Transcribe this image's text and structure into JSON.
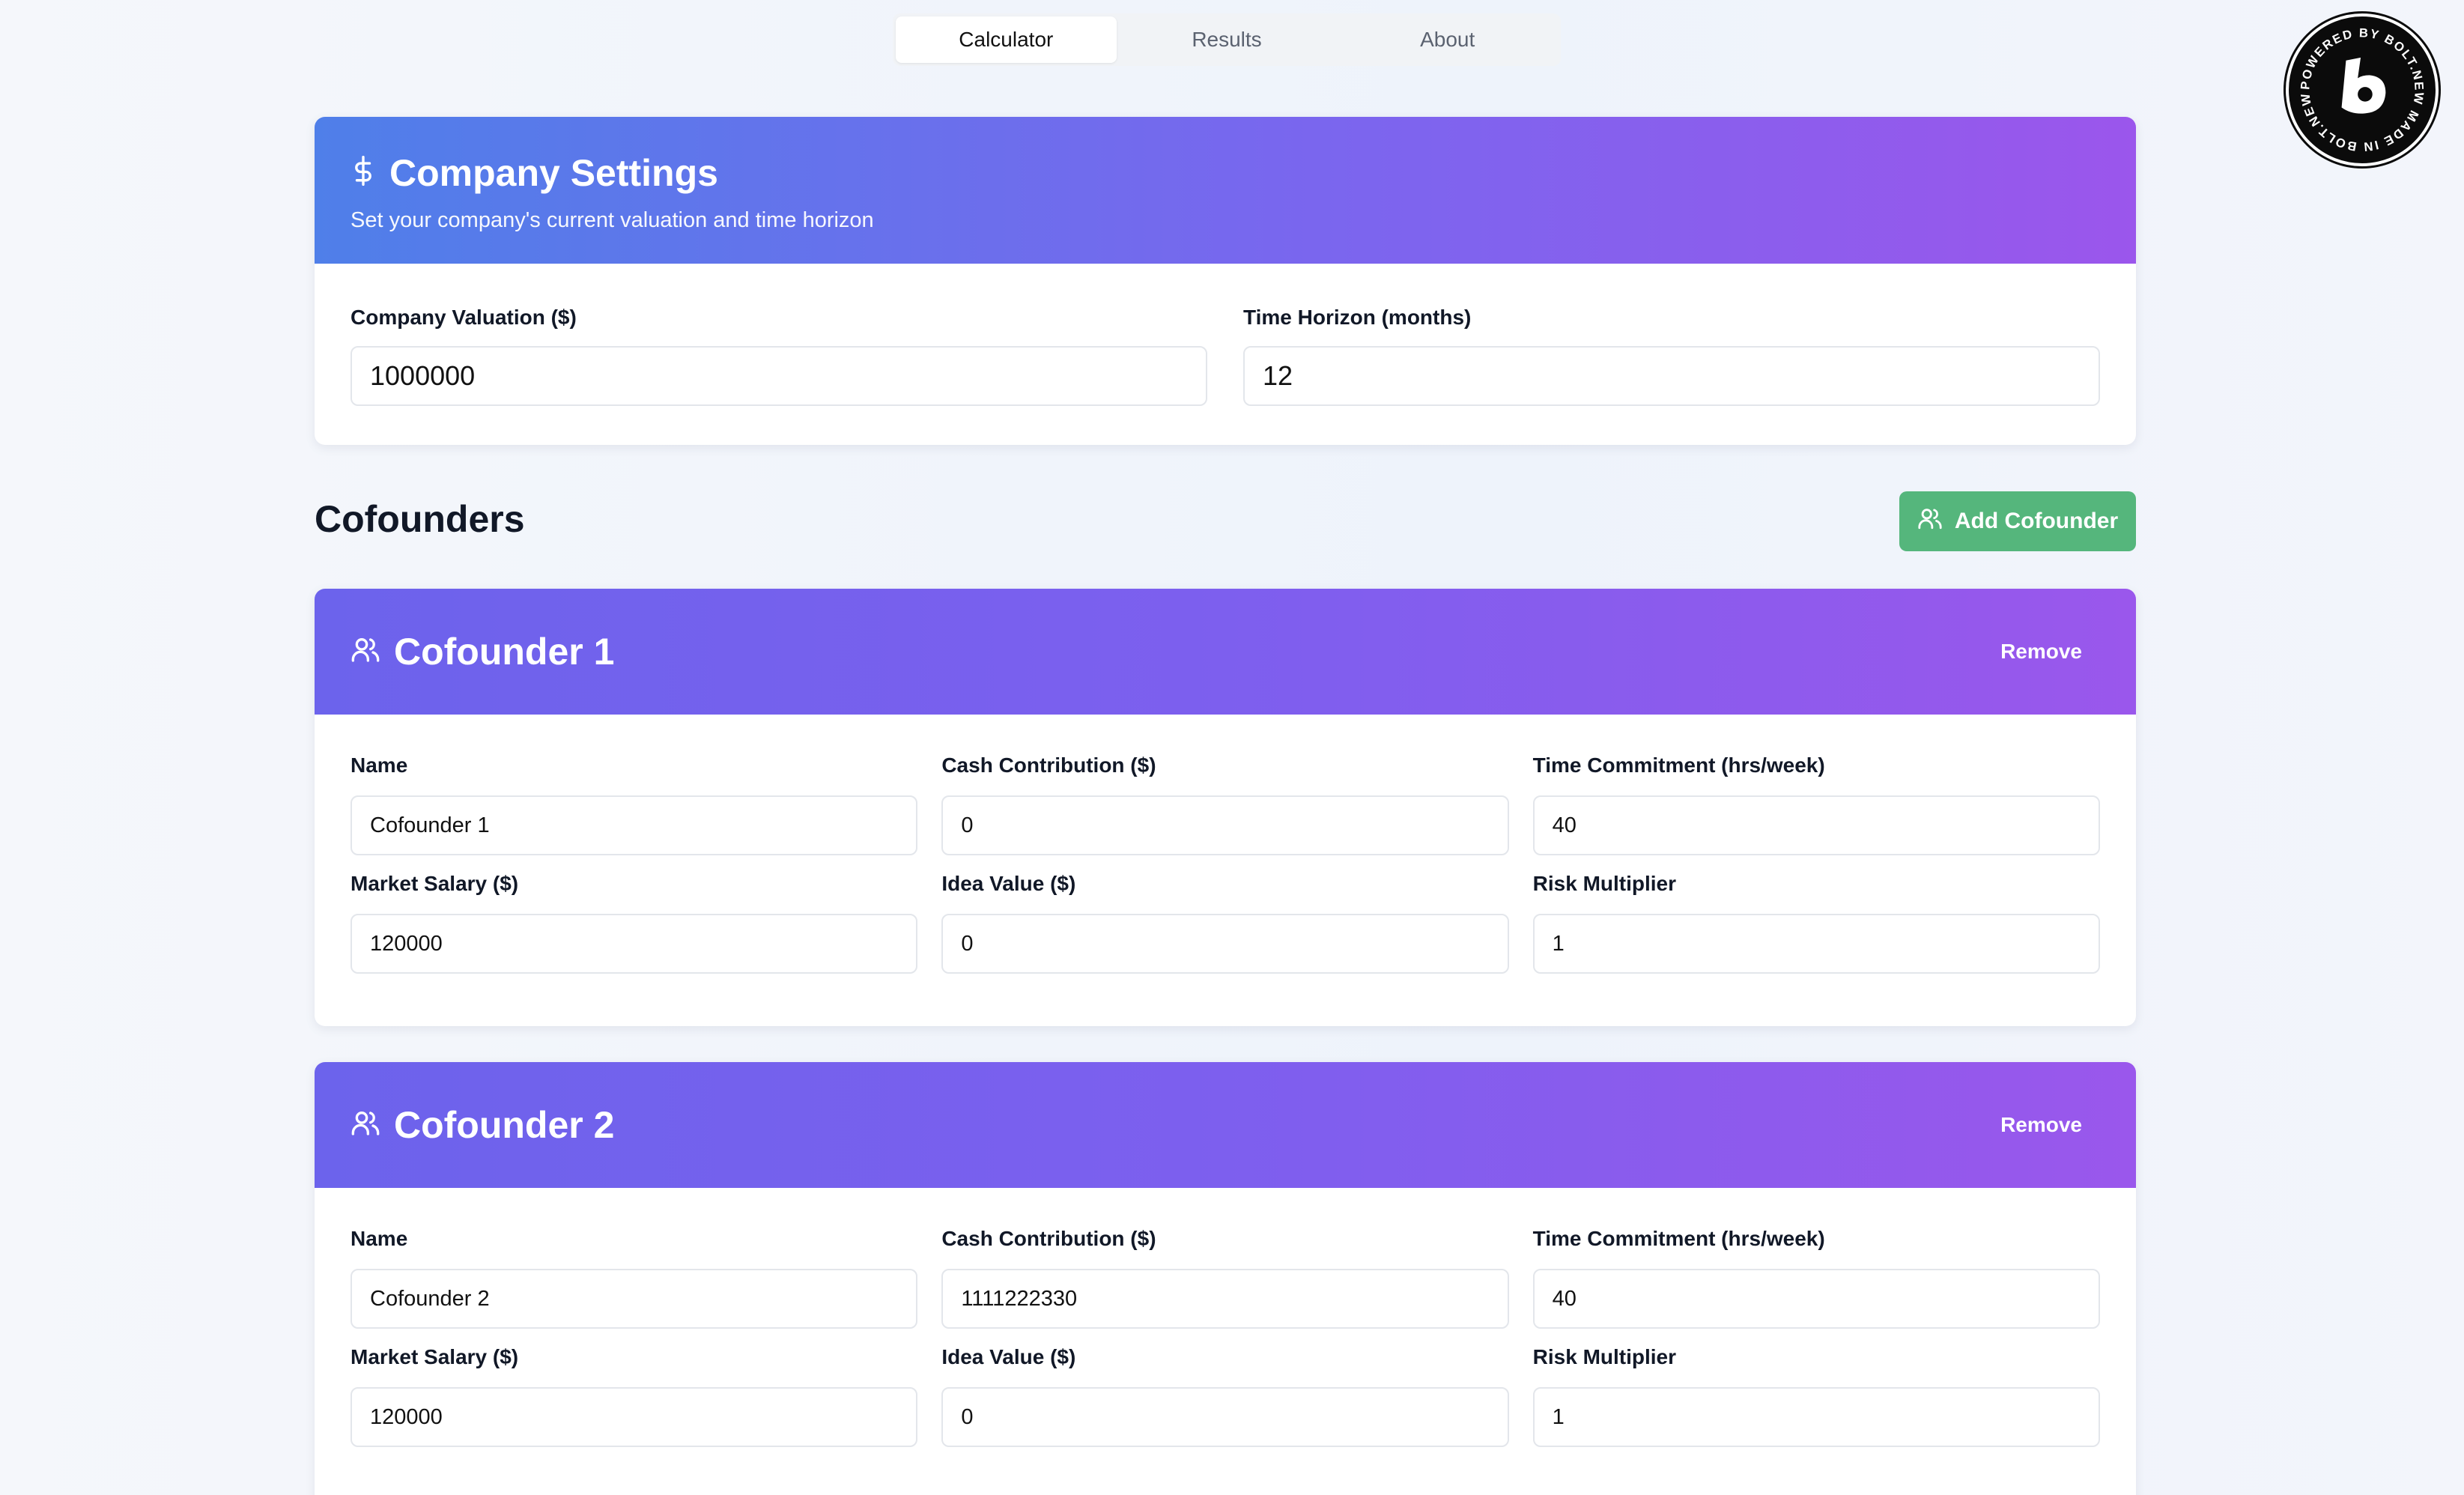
{
  "tabs": [
    {
      "label": "Calculator",
      "active": true
    },
    {
      "label": "Results",
      "active": false
    },
    {
      "label": "About",
      "active": false
    }
  ],
  "badge": {
    "text": "POWERED BY BOLT.NEW MADE IN BOLT.NEW",
    "icon": "bolt-logo-icon"
  },
  "company_settings": {
    "title": "Company Settings",
    "subtitle": "Set your company's current valuation and time horizon",
    "icon": "dollar-icon",
    "valuation_label": "Company Valuation ($)",
    "valuation_value": "1000000",
    "horizon_label": "Time Horizon (months)",
    "horizon_value": "12"
  },
  "cofounders_section": {
    "title": "Cofounders",
    "add_label": "Add Cofounder",
    "add_icon": "users-icon"
  },
  "cofounders": [
    {
      "title": "Cofounder 1",
      "remove_label": "Remove",
      "name_label": "Name",
      "name_value": "Cofounder 1",
      "cash_label": "Cash Contribution ($)",
      "cash_value": "0",
      "time_label": "Time Commitment (hrs/week)",
      "time_value": "40",
      "salary_label": "Market Salary ($)",
      "salary_value": "120000",
      "idea_label": "Idea Value ($)",
      "idea_value": "0",
      "risk_label": "Risk Multiplier",
      "risk_value": "1"
    },
    {
      "title": "Cofounder 2",
      "remove_label": "Remove",
      "name_label": "Name",
      "name_value": "Cofounder 2",
      "cash_label": "Cash Contribution ($)",
      "cash_value": "1111222330",
      "time_label": "Time Commitment (hrs/week)",
      "time_value": "40",
      "salary_label": "Market Salary ($)",
      "salary_value": "120000",
      "idea_label": "Idea Value ($)",
      "idea_value": "0",
      "risk_label": "Risk Multiplier",
      "risk_value": "1"
    }
  ]
}
